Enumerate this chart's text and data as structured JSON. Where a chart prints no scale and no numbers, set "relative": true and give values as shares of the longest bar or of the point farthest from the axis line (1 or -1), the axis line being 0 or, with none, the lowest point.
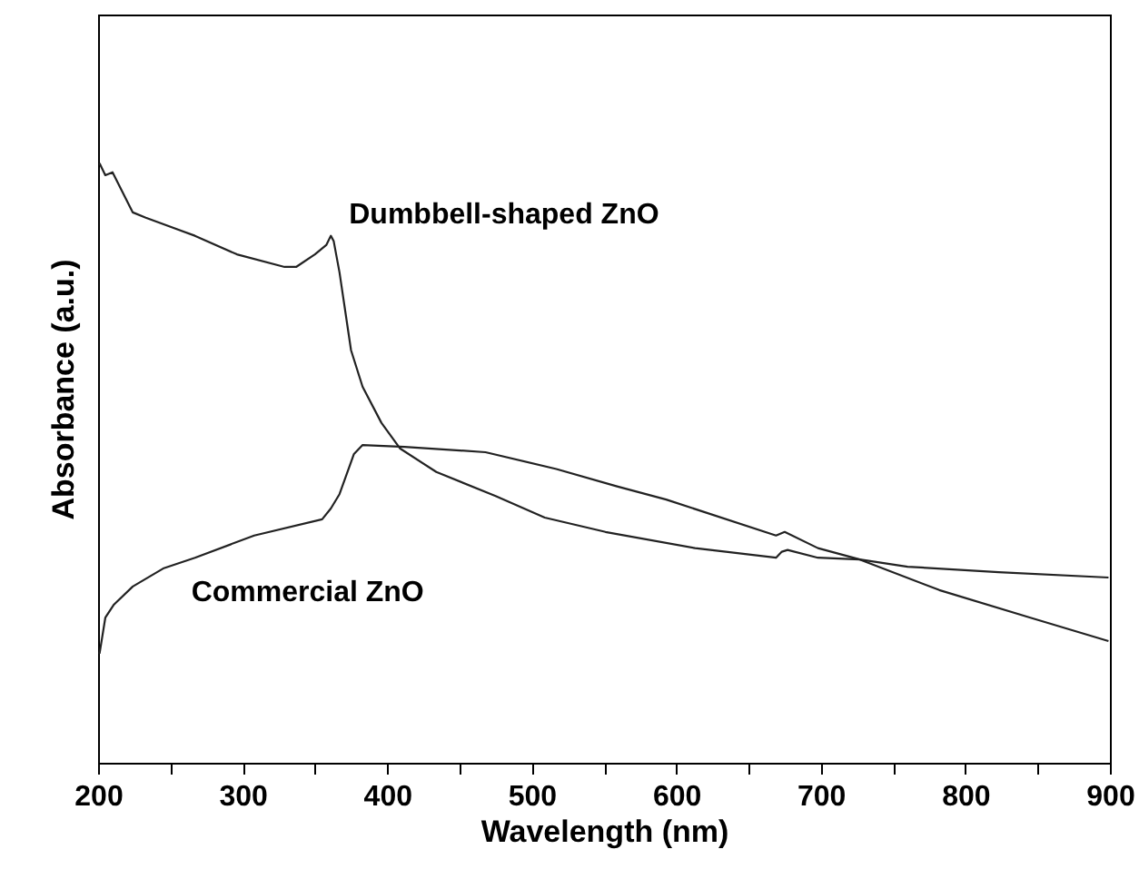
{
  "chart_data": {
    "type": "line",
    "xlabel": "Wavelength (nm)",
    "ylabel": "Absorbance (a.u.)",
    "relative": true,
    "xlim": [
      200,
      900
    ],
    "xticks": [
      200,
      {
        "value": 250,
        "label": null
      },
      300,
      {
        "value": 350,
        "label": null
      },
      400,
      {
        "value": 450,
        "label": null
      },
      500,
      {
        "value": 550,
        "label": null
      },
      600,
      {
        "value": 650,
        "label": null
      },
      700,
      {
        "value": 750,
        "label": null
      },
      800,
      {
        "value": 850,
        "label": null
      },
      900
    ],
    "grid": false,
    "marker": "none",
    "line_style": "solid",
    "series": [
      {
        "name": "Dumbbell-shaped ZnO",
        "color": "#222222",
        "x": [
          201,
          205,
          210,
          224,
          233,
          267,
          296,
          329,
          337,
          350,
          358,
          361,
          363,
          367,
          375,
          383,
          396,
          409,
          434,
          475,
          509,
          551,
          613,
          669,
          673,
          677,
          698,
          727,
          760,
          823,
          899
        ],
        "values": [
          1.0,
          0.98,
          0.985,
          0.918,
          0.909,
          0.879,
          0.848,
          0.827,
          0.827,
          0.848,
          0.864,
          0.879,
          0.87,
          0.818,
          0.688,
          0.627,
          0.567,
          0.524,
          0.485,
          0.445,
          0.409,
          0.385,
          0.358,
          0.342,
          0.352,
          0.355,
          0.342,
          0.339,
          0.327,
          0.318,
          0.309
        ]
      },
      {
        "name": "Commercial ZnO",
        "color": "#222222",
        "x": [
          201,
          205,
          211,
          224,
          245,
          267,
          308,
          355,
          361,
          367,
          377,
          383,
          412,
          468,
          517,
          559,
          593,
          669,
          675,
          698,
          727,
          782,
          845,
          899
        ],
        "values": [
          0.182,
          0.242,
          0.264,
          0.294,
          0.324,
          0.342,
          0.379,
          0.406,
          0.424,
          0.448,
          0.515,
          0.53,
          0.527,
          0.518,
          0.49,
          0.461,
          0.439,
          0.379,
          0.385,
          0.358,
          0.339,
          0.288,
          0.242,
          0.203
        ]
      }
    ]
  }
}
